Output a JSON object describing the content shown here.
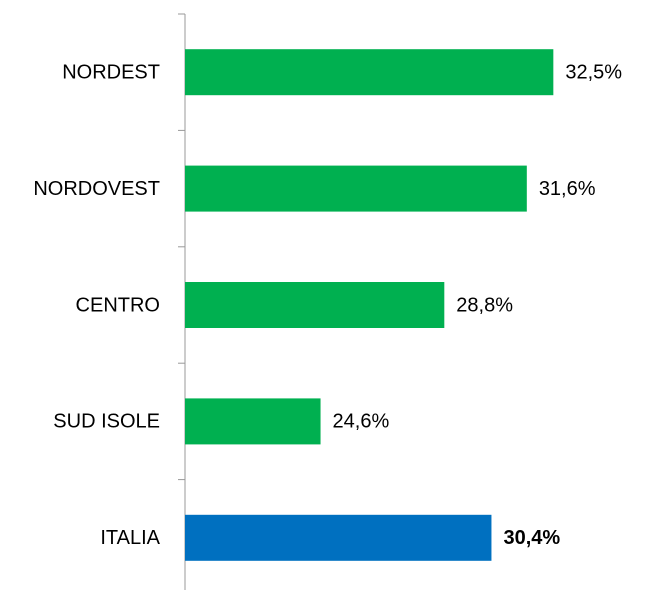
{
  "chart_data": {
    "type": "hbar",
    "categories": [
      "NORDEST",
      "NORDOVEST",
      "CENTRO",
      "SUD ISOLE",
      "ITALIA"
    ],
    "values": [
      32.5,
      31.6,
      28.8,
      24.6,
      30.4
    ],
    "value_labels": [
      "32,5%",
      "31,6%",
      "28,8%",
      "24,6%",
      "30,4%"
    ],
    "colors": [
      "#00b050",
      "#00b050",
      "#00b050",
      "#00b050",
      "#0070c0"
    ],
    "bold": [
      false,
      false,
      false,
      false,
      true
    ],
    "xlim": [
      20,
      35
    ]
  }
}
